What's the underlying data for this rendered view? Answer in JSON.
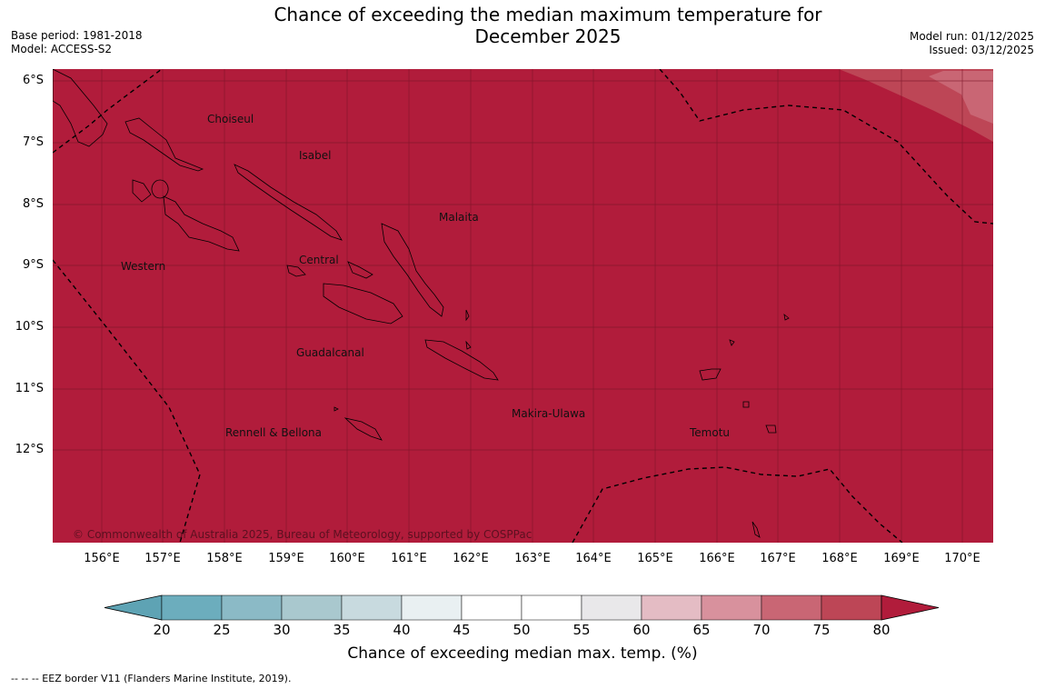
{
  "title_line1": "Chance of exceeding the median maximum temperature for",
  "title_line2": "December 2025",
  "base_period": "Base period: 1981-2018",
  "model": "Model: ACCESS-S2",
  "model_run": "Model run: 01/12/2025",
  "issued": "Issued: 03/12/2025",
  "lat_labels": [
    "6°S",
    "7°S",
    "8°S",
    "9°S",
    "10°S",
    "11°S",
    "12°S"
  ],
  "lon_labels": [
    "156°E",
    "157°E",
    "158°E",
    "159°E",
    "160°E",
    "161°E",
    "162°E",
    "163°E",
    "164°E",
    "165°E",
    "166°E",
    "167°E",
    "168°E",
    "169°E",
    "170°E"
  ],
  "regions": {
    "choiseul": "Choiseul",
    "isabel": "Isabel",
    "malaita": "Malaita",
    "western": "Western",
    "central": "Central",
    "guadalcanal": "Guadalcanal",
    "makira": "Makira-Ulawa",
    "rennell": "Rennell & Bellona",
    "temotu": "Temotu"
  },
  "copyright": "© Commonwealth of Australia 2025, Bureau of Meteorology, supported by COSPPac",
  "colorbar": {
    "ticks": [
      "20",
      "25",
      "30",
      "35",
      "40",
      "45",
      "50",
      "55",
      "60",
      "65",
      "70",
      "75",
      "80"
    ],
    "colors": [
      "#5ea3b4",
      "#6cadbd",
      "#8bbac6",
      "#a9c8ce",
      "#c8dadf",
      "#e9f0f2",
      "#ffffff",
      "#ffffff",
      "#e9e8ea",
      "#e4bcc4",
      "#d8919d",
      "#c96674",
      "#bd4656",
      "#b11c3b"
    ],
    "label": "Chance of exceeding median max. temp. (%)"
  },
  "map_colors": {
    "main": "#b11c3b",
    "p75": "#bd4656",
    "p70": "#c96674"
  },
  "eez_note": "--  --  -- EEZ border V11 (Flanders Marine Institute, 2019)."
}
